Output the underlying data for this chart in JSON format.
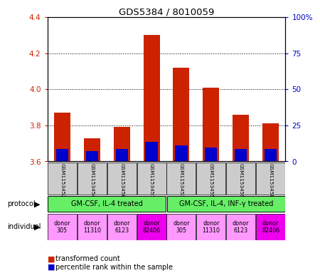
{
  "title": "GDS5384 / 8010059",
  "samples": [
    "GSM1153452",
    "GSM1153454",
    "GSM1153456",
    "GSM1153457",
    "GSM1153453",
    "GSM1153455",
    "GSM1153459",
    "GSM1153458"
  ],
  "red_values": [
    3.87,
    3.73,
    3.79,
    4.3,
    4.12,
    4.01,
    3.86,
    3.81
  ],
  "blue_values": [
    3.66,
    3.65,
    3.66,
    3.7,
    3.68,
    3.67,
    3.66,
    3.66
  ],
  "ylim": [
    3.6,
    4.4
  ],
  "yticks_left": [
    3.6,
    3.8,
    4.0,
    4.2,
    4.4
  ],
  "yticks_right": [
    0,
    25,
    50,
    75,
    100
  ],
  "right_tick_labels": [
    "0",
    "25",
    "50",
    "75",
    "100%"
  ],
  "protocol_labels": [
    "GM-CSF, IL-4 treated",
    "GM-CSF, IL-4, INF-γ treated"
  ],
  "individuals": [
    "donor\n305",
    "donor\n11310",
    "donor\n6123",
    "donor\n82406",
    "donor\n305",
    "donor\n11310",
    "donor\n6123",
    "donor\n82406"
  ],
  "individual_colors": [
    "#ff99ff",
    "#ff99ff",
    "#ff99ff",
    "#ee00ee",
    "#ff99ff",
    "#ff99ff",
    "#ff99ff",
    "#ee00ee"
  ],
  "red_color": "#cc2200",
  "blue_color": "#0000cc",
  "sample_bg_color": "#cccccc",
  "protocol_color": "#66ee66",
  "legend_red": "transformed count",
  "legend_blue": "percentile rank within the sample",
  "base": 3.6
}
